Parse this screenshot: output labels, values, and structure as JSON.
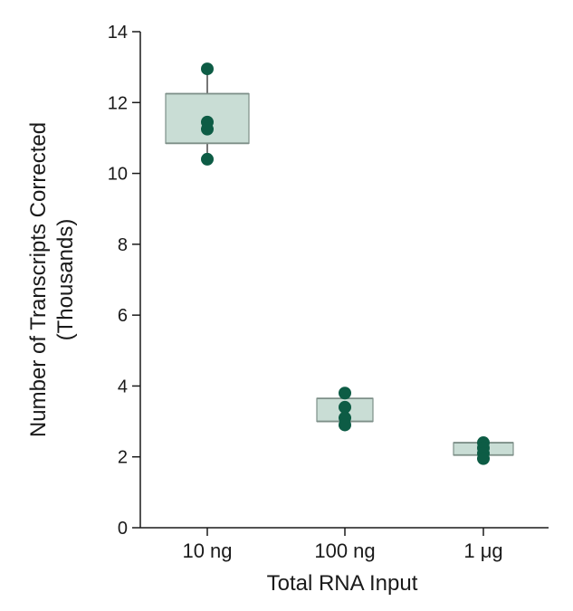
{
  "chart_data": {
    "type": "box",
    "xlabel": "Total RNA Input",
    "ylabel": "Number of Transcripts Corrected",
    "ylabel_line2": "(Thousands)",
    "categories": [
      "10 ng",
      "100 ng",
      "1 μg"
    ],
    "ylim": [
      0,
      14
    ],
    "yticks": [
      "0",
      "2",
      "4",
      "6",
      "8",
      "10",
      "12",
      "14"
    ],
    "grid": false,
    "legend": "none",
    "boxes": [
      {
        "category": "10 ng",
        "q1": 10.85,
        "q3": 12.25,
        "median": 12.25,
        "whisker_low": 10.4,
        "whisker_high": 12.95,
        "points": [
          12.95,
          11.45,
          11.25,
          10.4
        ]
      },
      {
        "category": "100 ng",
        "q1": 3.0,
        "q3": 3.65,
        "median": 3.0,
        "whisker_low": 2.9,
        "whisker_high": 3.8,
        "points": [
          3.8,
          3.4,
          3.1,
          2.9
        ]
      },
      {
        "category": "1 μg",
        "q1": 2.05,
        "q3": 2.4,
        "median": 2.05,
        "whisker_low": 1.95,
        "whisker_high": 2.4,
        "points": [
          2.4,
          2.25,
          2.1,
          1.95
        ]
      }
    ],
    "colors": {
      "box_fill": "#c9ddd5",
      "box_edge": "#7d8f88",
      "point": "#0d5c45",
      "whisker": "#1a1a1a",
      "axis": "#1a1a1a"
    }
  }
}
